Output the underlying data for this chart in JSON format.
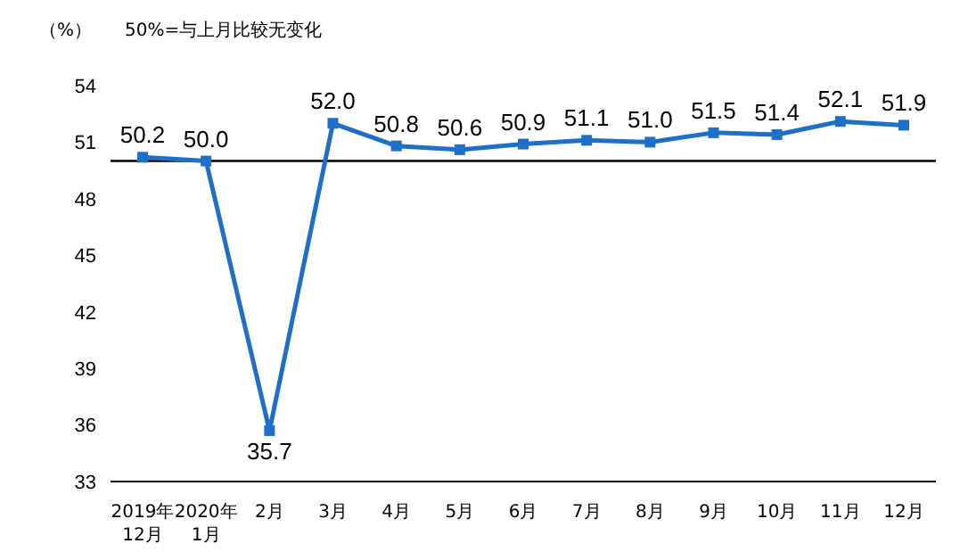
{
  "chart_data": {
    "type": "line",
    "ylabel": "（%）",
    "annotations": [
      "50%=与上月比较无变化"
    ],
    "categories": [
      "2019年\n12月",
      "2020年\n1月",
      "2月",
      "3月",
      "4月",
      "5月",
      "6月",
      "7月",
      "8月",
      "9月",
      "10月",
      "11月",
      "12月"
    ],
    "series": [
      {
        "color": "#1f6fc8",
        "values": [
          50.2,
          50.0,
          35.7,
          52.0,
          50.8,
          50.6,
          50.9,
          51.1,
          51.0,
          51.5,
          51.4,
          52.1,
          51.9
        ],
        "value_labels": [
          "50.2",
          "50.0",
          "35.7",
          "52.0",
          "50.8",
          "50.6",
          "50.9",
          "51.1",
          "51.0",
          "51.5",
          "51.4",
          "52.1",
          "51.9"
        ]
      }
    ],
    "ylim": [
      33,
      54
    ],
    "yticks": [
      33,
      36,
      39,
      42,
      45,
      48,
      51,
      54
    ],
    "ref_lines": [
      {
        "axis": "y",
        "value": 50,
        "color": "#000000"
      }
    ],
    "marker": "square",
    "line_style": "solid"
  }
}
